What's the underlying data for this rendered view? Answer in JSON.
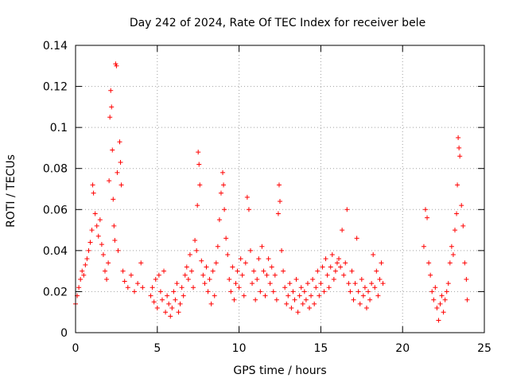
{
  "chart_data": {
    "type": "scatter",
    "title": "Day 242 of 2024, Rate Of TEC Index for receiver bele",
    "xlabel": "GPS time / hours",
    "ylabel": "ROTI / TECUs",
    "xlim": [
      0,
      25
    ],
    "ylim": [
      0,
      0.14
    ],
    "xticks": [
      0,
      5,
      10,
      15,
      20,
      25
    ],
    "yticks": [
      0,
      0.02,
      0.04,
      0.06,
      0.08,
      0.1,
      0.12,
      0.14
    ],
    "xtick_labels": [
      "0",
      "5",
      "10",
      "15",
      "20",
      "25"
    ],
    "ytick_labels": [
      "0",
      "0.02",
      "0.04",
      "0.06",
      "0.08",
      "0.1",
      "0.12",
      "0.14"
    ],
    "grid": true,
    "marker": "+",
    "series": [
      {
        "color": "#ff0000",
        "points": [
          [
            0.0,
            0.014
          ],
          [
            0.1,
            0.018
          ],
          [
            0.2,
            0.022
          ],
          [
            0.3,
            0.026
          ],
          [
            0.4,
            0.03
          ],
          [
            0.5,
            0.028
          ],
          [
            0.6,
            0.033
          ],
          [
            0.7,
            0.036
          ],
          [
            0.8,
            0.04
          ],
          [
            0.9,
            0.044
          ],
          [
            1.0,
            0.05
          ],
          [
            1.05,
            0.072
          ],
          [
            1.1,
            0.068
          ],
          [
            1.2,
            0.058
          ],
          [
            1.3,
            0.052
          ],
          [
            1.4,
            0.047
          ],
          [
            1.5,
            0.055
          ],
          [
            1.6,
            0.043
          ],
          [
            1.7,
            0.038
          ],
          [
            1.8,
            0.03
          ],
          [
            1.9,
            0.026
          ],
          [
            2.0,
            0.034
          ],
          [
            2.05,
            0.074
          ],
          [
            2.1,
            0.105
          ],
          [
            2.15,
            0.118
          ],
          [
            2.2,
            0.11
          ],
          [
            2.25,
            0.089
          ],
          [
            2.3,
            0.065
          ],
          [
            2.35,
            0.052
          ],
          [
            2.4,
            0.045
          ],
          [
            2.45,
            0.131
          ],
          [
            2.5,
            0.13
          ],
          [
            2.55,
            0.078
          ],
          [
            2.6,
            0.04
          ],
          [
            2.7,
            0.093
          ],
          [
            2.75,
            0.083
          ],
          [
            2.8,
            0.072
          ],
          [
            2.9,
            0.03
          ],
          [
            3.0,
            0.025
          ],
          [
            3.2,
            0.022
          ],
          [
            3.4,
            0.028
          ],
          [
            3.6,
            0.02
          ],
          [
            3.8,
            0.024
          ],
          [
            4.0,
            0.034
          ],
          [
            4.1,
            0.022
          ],
          [
            4.6,
            0.018
          ],
          [
            4.7,
            0.022
          ],
          [
            4.8,
            0.015
          ],
          [
            4.9,
            0.026
          ],
          [
            5.0,
            0.012
          ],
          [
            5.1,
            0.028
          ],
          [
            5.2,
            0.02
          ],
          [
            5.3,
            0.016
          ],
          [
            5.4,
            0.03
          ],
          [
            5.5,
            0.01
          ],
          [
            5.6,
            0.018
          ],
          [
            5.7,
            0.014
          ],
          [
            5.8,
            0.008
          ],
          [
            5.9,
            0.012
          ],
          [
            6.0,
            0.02
          ],
          [
            6.1,
            0.016
          ],
          [
            6.2,
            0.024
          ],
          [
            6.3,
            0.01
          ],
          [
            6.4,
            0.014
          ],
          [
            6.5,
            0.022
          ],
          [
            6.6,
            0.018
          ],
          [
            6.7,
            0.028
          ],
          [
            6.8,
            0.032
          ],
          [
            6.9,
            0.026
          ],
          [
            7.0,
            0.038
          ],
          [
            7.1,
            0.03
          ],
          [
            7.2,
            0.022
          ],
          [
            7.3,
            0.045
          ],
          [
            7.4,
            0.04
          ],
          [
            7.45,
            0.062
          ],
          [
            7.5,
            0.088
          ],
          [
            7.55,
            0.082
          ],
          [
            7.6,
            0.072
          ],
          [
            7.7,
            0.035
          ],
          [
            7.8,
            0.028
          ],
          [
            7.9,
            0.024
          ],
          [
            8.0,
            0.032
          ],
          [
            8.1,
            0.02
          ],
          [
            8.2,
            0.026
          ],
          [
            8.3,
            0.014
          ],
          [
            8.4,
            0.03
          ],
          [
            8.5,
            0.018
          ],
          [
            8.6,
            0.034
          ],
          [
            8.7,
            0.042
          ],
          [
            8.8,
            0.055
          ],
          [
            8.9,
            0.068
          ],
          [
            9.0,
            0.078
          ],
          [
            9.05,
            0.072
          ],
          [
            9.1,
            0.06
          ],
          [
            9.2,
            0.046
          ],
          [
            9.3,
            0.038
          ],
          [
            9.4,
            0.026
          ],
          [
            9.5,
            0.02
          ],
          [
            9.6,
            0.032
          ],
          [
            9.7,
            0.016
          ],
          [
            9.8,
            0.024
          ],
          [
            9.9,
            0.03
          ],
          [
            10.0,
            0.022
          ],
          [
            10.1,
            0.036
          ],
          [
            10.2,
            0.028
          ],
          [
            10.3,
            0.018
          ],
          [
            10.4,
            0.034
          ],
          [
            10.5,
            0.066
          ],
          [
            10.6,
            0.06
          ],
          [
            10.7,
            0.04
          ],
          [
            10.8,
            0.024
          ],
          [
            10.9,
            0.03
          ],
          [
            11.0,
            0.016
          ],
          [
            11.1,
            0.026
          ],
          [
            11.2,
            0.036
          ],
          [
            11.3,
            0.02
          ],
          [
            11.4,
            0.042
          ],
          [
            11.5,
            0.03
          ],
          [
            11.6,
            0.018
          ],
          [
            11.7,
            0.028
          ],
          [
            11.8,
            0.036
          ],
          [
            11.9,
            0.024
          ],
          [
            12.0,
            0.032
          ],
          [
            12.1,
            0.02
          ],
          [
            12.2,
            0.028
          ],
          [
            12.3,
            0.016
          ],
          [
            12.4,
            0.058
          ],
          [
            12.45,
            0.072
          ],
          [
            12.5,
            0.064
          ],
          [
            12.6,
            0.04
          ],
          [
            12.7,
            0.03
          ],
          [
            12.8,
            0.022
          ],
          [
            12.9,
            0.014
          ],
          [
            13.0,
            0.018
          ],
          [
            13.1,
            0.024
          ],
          [
            13.2,
            0.012
          ],
          [
            13.3,
            0.02
          ],
          [
            13.4,
            0.016
          ],
          [
            13.5,
            0.026
          ],
          [
            13.6,
            0.01
          ],
          [
            13.7,
            0.018
          ],
          [
            13.8,
            0.022
          ],
          [
            13.9,
            0.014
          ],
          [
            14.0,
            0.02
          ],
          [
            14.1,
            0.016
          ],
          [
            14.2,
            0.024
          ],
          [
            14.3,
            0.012
          ],
          [
            14.4,
            0.018
          ],
          [
            14.5,
            0.026
          ],
          [
            14.6,
            0.014
          ],
          [
            14.7,
            0.022
          ],
          [
            14.8,
            0.03
          ],
          [
            14.9,
            0.018
          ],
          [
            15.0,
            0.024
          ],
          [
            15.1,
            0.032
          ],
          [
            15.2,
            0.02
          ],
          [
            15.3,
            0.036
          ],
          [
            15.4,
            0.028
          ],
          [
            15.5,
            0.022
          ],
          [
            15.6,
            0.032
          ],
          [
            15.7,
            0.038
          ],
          [
            15.8,
            0.026
          ],
          [
            15.9,
            0.03
          ],
          [
            16.0,
            0.034
          ],
          [
            16.1,
            0.036
          ],
          [
            16.2,
            0.032
          ],
          [
            16.3,
            0.05
          ],
          [
            16.4,
            0.028
          ],
          [
            16.5,
            0.034
          ],
          [
            16.6,
            0.06
          ],
          [
            16.7,
            0.024
          ],
          [
            16.8,
            0.02
          ],
          [
            16.9,
            0.03
          ],
          [
            17.0,
            0.016
          ],
          [
            17.1,
            0.024
          ],
          [
            17.2,
            0.046
          ],
          [
            17.3,
            0.02
          ],
          [
            17.4,
            0.014
          ],
          [
            17.5,
            0.026
          ],
          [
            17.6,
            0.018
          ],
          [
            17.7,
            0.022
          ],
          [
            17.8,
            0.012
          ],
          [
            17.9,
            0.02
          ],
          [
            18.0,
            0.016
          ],
          [
            18.1,
            0.024
          ],
          [
            18.2,
            0.038
          ],
          [
            18.3,
            0.022
          ],
          [
            18.4,
            0.03
          ],
          [
            18.5,
            0.018
          ],
          [
            18.6,
            0.026
          ],
          [
            18.7,
            0.034
          ],
          [
            18.8,
            0.024
          ],
          [
            21.3,
            0.042
          ],
          [
            21.4,
            0.06
          ],
          [
            21.5,
            0.056
          ],
          [
            21.6,
            0.034
          ],
          [
            21.7,
            0.028
          ],
          [
            21.8,
            0.02
          ],
          [
            21.9,
            0.016
          ],
          [
            22.0,
            0.022
          ],
          [
            22.1,
            0.012
          ],
          [
            22.2,
            0.006
          ],
          [
            22.3,
            0.014
          ],
          [
            22.4,
            0.018
          ],
          [
            22.5,
            0.01
          ],
          [
            22.6,
            0.016
          ],
          [
            22.7,
            0.02
          ],
          [
            22.8,
            0.024
          ],
          [
            22.9,
            0.034
          ],
          [
            23.0,
            0.042
          ],
          [
            23.1,
            0.038
          ],
          [
            23.2,
            0.05
          ],
          [
            23.3,
            0.058
          ],
          [
            23.35,
            0.072
          ],
          [
            23.4,
            0.095
          ],
          [
            23.45,
            0.09
          ],
          [
            23.5,
            0.086
          ],
          [
            23.6,
            0.062
          ],
          [
            23.7,
            0.052
          ],
          [
            23.8,
            0.034
          ],
          [
            23.9,
            0.026
          ],
          [
            23.95,
            0.016
          ]
        ]
      }
    ]
  }
}
